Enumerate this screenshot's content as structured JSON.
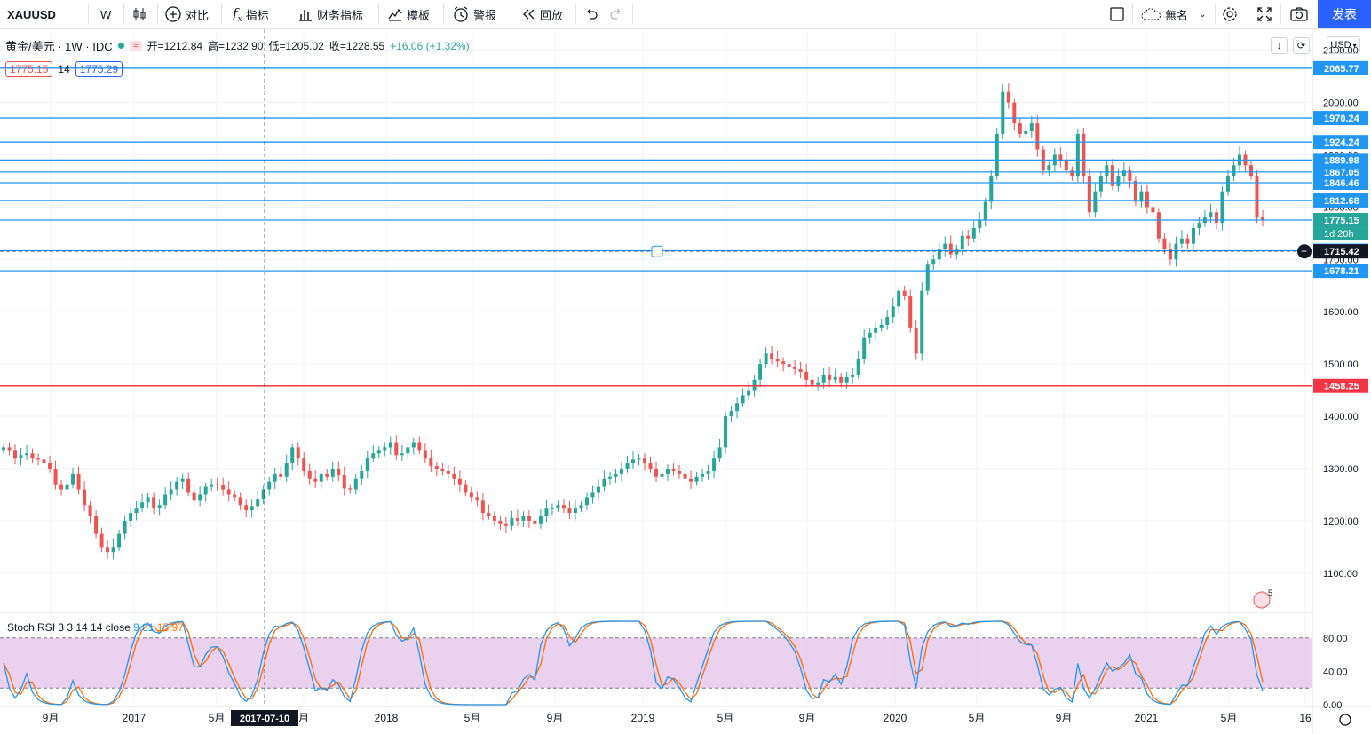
{
  "toolbar": {
    "symbol": "XAUUSD",
    "interval": "W",
    "compare_label": "对比",
    "indicators_label": "指标",
    "financials_label": "财务指标",
    "templates_label": "模板",
    "alert_label": "警报",
    "replay_label": "回放",
    "layout_name": "無名",
    "publish_label": "发表"
  },
  "legend": {
    "title": "黄金/美元 · 1W · IDC",
    "open": "开=1212.84",
    "high": "高=1232.90",
    "low": "低=1205.02",
    "close": "收=1228.55",
    "change": "+16.06 (+1.32%)",
    "bid": "1775.15",
    "spread": "14",
    "ask": "1775.29"
  },
  "currency": "USD",
  "rsi": {
    "title": "Stoch RSI 3 3 14 14 close",
    "k": "9.81",
    "d": "15.97",
    "ticks": [
      "80.00",
      "40.00",
      "0.00"
    ]
  },
  "colors": {
    "up": "#26a69a",
    "down": "#ef5350",
    "hline": "#2196f3",
    "red_line": "#f23645",
    "band": "#e1bee7",
    "k_line": "#2196f3",
    "d_line": "#ff6d00"
  },
  "chart_data": {
    "type": "candlestick",
    "timeframe": "1W",
    "price_ticks": [
      "2100.00",
      "2000.00",
      "1900.00",
      "1800.00",
      "1700.00",
      "1600.00",
      "1500.00",
      "1400.00",
      "1300.00",
      "1200.00",
      "1100.00"
    ],
    "price_tick_values": [
      2100,
      2000,
      1900,
      1800,
      1700,
      1600,
      1500,
      1400,
      1300,
      1200,
      1100
    ],
    "ylim": [
      1025,
      2135
    ],
    "x_ticks": [
      "9月",
      "2017",
      "5月",
      "2017-07-10",
      "月",
      "2018",
      "5月",
      "9月",
      "2019",
      "5月",
      "9月",
      "2020",
      "5月",
      "9月",
      "2021",
      "5月",
      "16"
    ],
    "horizontal_lines": [
      {
        "label": "2065.77",
        "value": 2065.77
      },
      {
        "label": "1970.24",
        "value": 1970.24
      },
      {
        "label": "1924.24",
        "value": 1924.24
      },
      {
        "label": "1889.98",
        "value": 1889.98
      },
      {
        "label": "1867.05",
        "value": 1867.05
      },
      {
        "label": "1846.46",
        "value": 1846.46
      },
      {
        "label": "1812.68",
        "value": 1812.68
      },
      {
        "label": "1775.15",
        "value": 1775.15
      },
      {
        "label": "1716.68",
        "value": 1716.68
      },
      {
        "label": "1678.21",
        "value": 1678.21
      }
    ],
    "support_line": {
      "label": "1458.25",
      "value": 1458.25
    },
    "current_price": {
      "label": "1775.15",
      "countdown": "1d 20h",
      "value": 1775.15
    },
    "crosshair_price": {
      "label": "1715.42",
      "value": 1715.42
    },
    "crosshair_date": "2017-07-10",
    "closes": [
      1340,
      1335,
      1320,
      1325,
      1330,
      1320,
      1318,
      1310,
      1300,
      1270,
      1260,
      1270,
      1290,
      1260,
      1230,
      1210,
      1175,
      1150,
      1140,
      1150,
      1175,
      1200,
      1215,
      1225,
      1235,
      1245,
      1225,
      1230,
      1250,
      1260,
      1275,
      1280,
      1255,
      1240,
      1250,
      1265,
      1270,
      1268,
      1260,
      1250,
      1245,
      1230,
      1220,
      1228,
      1242,
      1260,
      1275,
      1290,
      1285,
      1310,
      1340,
      1320,
      1295,
      1280,
      1275,
      1290,
      1285,
      1300,
      1288,
      1262,
      1260,
      1280,
      1295,
      1320,
      1330,
      1335,
      1340,
      1350,
      1325,
      1330,
      1340,
      1350,
      1335,
      1320,
      1305,
      1300,
      1295,
      1290,
      1280,
      1270,
      1255,
      1245,
      1240,
      1215,
      1210,
      1200,
      1195,
      1190,
      1205,
      1200,
      1210,
      1200,
      1195,
      1210,
      1225,
      1225,
      1230,
      1225,
      1215,
      1225,
      1230,
      1245,
      1255,
      1265,
      1280,
      1285,
      1290,
      1300,
      1310,
      1318,
      1320,
      1310,
      1300,
      1285,
      1290,
      1300,
      1295,
      1290,
      1280,
      1275,
      1285,
      1290,
      1295,
      1320,
      1340,
      1400,
      1410,
      1425,
      1440,
      1450,
      1470,
      1500,
      1520,
      1510,
      1505,
      1500,
      1495,
      1490,
      1485,
      1470,
      1460,
      1465,
      1480,
      1470,
      1475,
      1465,
      1475,
      1480,
      1510,
      1550,
      1560,
      1570,
      1575,
      1590,
      1610,
      1640,
      1630,
      1570,
      1520,
      1640,
      1690,
      1700,
      1720,
      1730,
      1710,
      1720,
      1745,
      1740,
      1760,
      1775,
      1810,
      1860,
      1940,
      2020,
      2000,
      1960,
      1940,
      1945,
      1960,
      1910,
      1870,
      1880,
      1900,
      1890,
      1870,
      1860,
      1940,
      1860,
      1790,
      1830,
      1860,
      1880,
      1840,
      1860,
      1870,
      1850,
      1810,
      1830,
      1800,
      1790,
      1740,
      1720,
      1700,
      1730,
      1740,
      1730,
      1760,
      1770,
      1780,
      1790,
      1770,
      1830,
      1860,
      1880,
      1900,
      1880,
      1860,
      1780,
      1775
    ]
  }
}
